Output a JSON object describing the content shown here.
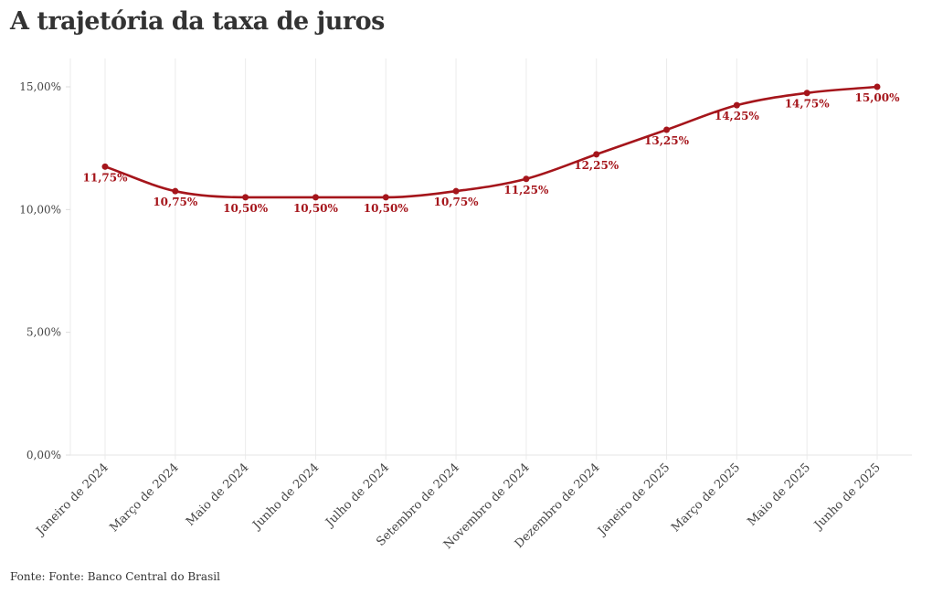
{
  "chart_data": {
    "type": "line",
    "title": "A trajetória da taxa de juros",
    "source": "Fonte: Fonte: Banco Central do Brasil",
    "categories": [
      "Janeiro de 2024",
      "Março de 2024",
      "Maio de 2024",
      "Junho de 2024",
      "Julho de 2024",
      "Setembro de 2024",
      "Novembro de 2024",
      "Dezembro de 2024",
      "Janeiro de 2025",
      "Março de 2025",
      "Maio de 2025",
      "Junho de 2025"
    ],
    "values": [
      11.75,
      10.75,
      10.5,
      10.5,
      10.5,
      10.75,
      11.25,
      12.25,
      13.25,
      14.25,
      14.75,
      15.0
    ],
    "data_labels": [
      "11,75%",
      "10,75%",
      "10,50%",
      "10,50%",
      "10,50%",
      "10,75%",
      "11,25%",
      "12,25%",
      "13,25%",
      "14,25%",
      "14,75%",
      "15,00%"
    ],
    "ylim": [
      0,
      16
    ],
    "yticks": [
      0,
      5,
      10,
      15
    ],
    "ytick_labels": [
      "0,00%",
      "5,00%",
      "10,00%",
      "15,00%"
    ],
    "xlabel": "",
    "ylabel": "",
    "grid": "vertical",
    "legend": "none",
    "color": "#a5151b"
  }
}
